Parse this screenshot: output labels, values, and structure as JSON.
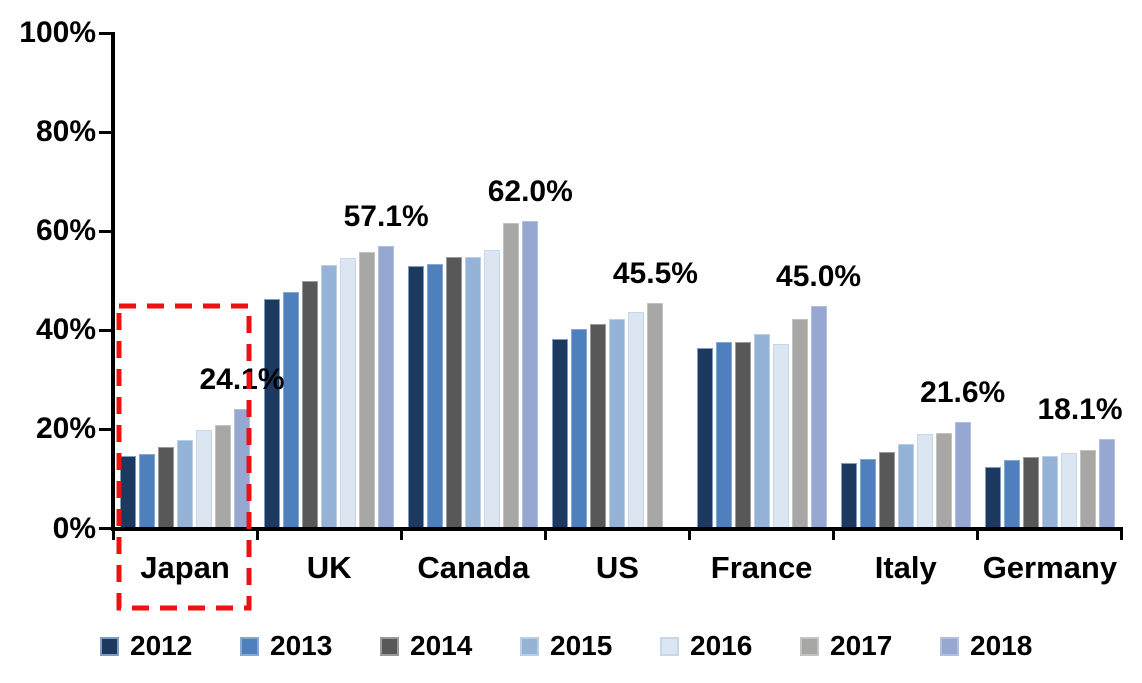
{
  "chart_data": {
    "type": "bar",
    "title": "",
    "xlabel": "",
    "ylabel": "",
    "grid": false,
    "legend_position": "bottom",
    "ylim": [
      0,
      100
    ],
    "yticks": [
      {
        "value": 0,
        "label": "0%"
      },
      {
        "value": 20,
        "label": "20%"
      },
      {
        "value": 40,
        "label": "40%"
      },
      {
        "value": 60,
        "label": "60%"
      },
      {
        "value": 80,
        "label": "80%"
      },
      {
        "value": 100,
        "label": "100%"
      }
    ],
    "categories": [
      "Japan",
      "UK",
      "Canada",
      "US",
      "France",
      "Italy",
      "Germany"
    ],
    "series": [
      {
        "name": "2012",
        "color": "#1C3A60",
        "border": "#7F9DC1",
        "values": [
          14.7,
          46.3,
          52.9,
          38.3,
          36.4,
          13.3,
          12.5
        ]
      },
      {
        "name": "2013",
        "color": "#4E80BE",
        "border": "#86A9D4",
        "values": [
          15.0,
          47.8,
          53.3,
          40.2,
          37.7,
          14.0,
          13.9
        ]
      },
      {
        "name": "2014",
        "color": "#585858",
        "border": "#9A9A9A",
        "values": [
          16.4,
          49.9,
          54.9,
          41.2,
          37.6,
          15.4,
          14.4
        ]
      },
      {
        "name": "2015",
        "color": "#95B3D7",
        "border": "#BACFE6",
        "values": [
          17.9,
          53.2,
          54.8,
          42.3,
          39.2,
          17.0,
          14.7
        ]
      },
      {
        "name": "2016",
        "color": "#DCE6F2",
        "border": "#C8D6EA",
        "values": [
          19.8,
          54.7,
          56.2,
          43.7,
          37.2,
          19.1,
          15.3
        ]
      },
      {
        "name": "2017",
        "color": "#A7A7A5",
        "border": "#C3C3C1",
        "values": [
          20.9,
          55.8,
          61.7,
          45.5,
          42.3,
          19.2,
          15.9
        ]
      },
      {
        "name": "2018",
        "color": "#96A7D1",
        "border": "#B3BFDE",
        "values": [
          24.1,
          57.1,
          62.0,
          null,
          45.0,
          21.6,
          18.1
        ]
      }
    ],
    "data_labels": [
      "24.1%",
      "57.1%",
      "62.0%",
      "45.5%",
      "45.0%",
      "21.6%",
      "18.1%"
    ],
    "highlight": {
      "category": "Japan",
      "style": "dashed-box",
      "color": "#EE1111"
    }
  }
}
